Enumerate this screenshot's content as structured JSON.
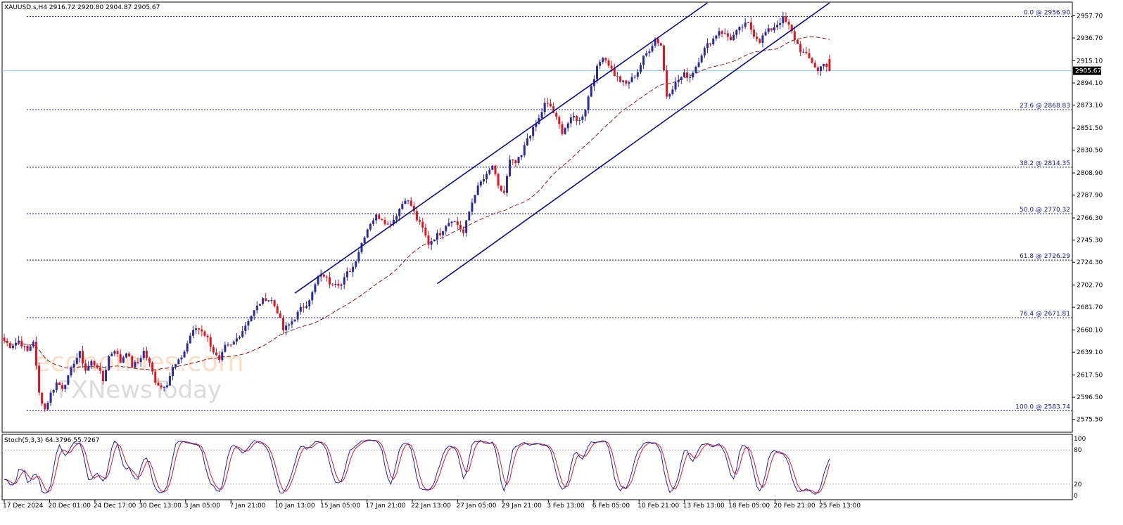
{
  "header": {
    "symbol_info": "XAUUSD.s,H4  2916.72 2920.80 2904.87 2905.67"
  },
  "current_price": {
    "value": 2905.67,
    "label": "2905.67"
  },
  "watermark": {
    "line1": "economies.com",
    "line2": "FXNewsToday"
  },
  "colors": {
    "bull": "#2a2a9a",
    "bear": "#e0141e",
    "channel": "#0a0a8c",
    "fib": "#1a1a8c",
    "ma": "#8b1a1a",
    "stoch_main": "#1f1fb0",
    "stoch_signal": "#e0141e",
    "current_line": "#87cefa"
  },
  "chart_data": [
    {
      "type": "candlestick",
      "title": "XAUUSD.s,H4",
      "symbol": "XAUUSD.s",
      "timeframe": "H4",
      "last_bar": {
        "open": 2916.72,
        "high": 2920.8,
        "low": 2904.87,
        "close": 2905.67
      },
      "ylim": [
        2564,
        2970
      ],
      "y_ticks": [
        "2957.70",
        "2936.70",
        "2915.10",
        "2894.10",
        "2873.10",
        "2851.50",
        "2830.50",
        "2808.90",
        "2787.90",
        "2766.30",
        "2745.30",
        "2724.30",
        "2702.70",
        "2681.70",
        "2660.10",
        "2639.10",
        "2617.50",
        "2596.50",
        "2575.50"
      ],
      "x_ticks": [
        "17 Dec 2024",
        "20 Dec 01:00",
        "24 Dec 17:00",
        "30 Dec 13:00",
        "3 Jan 05:00",
        "7 Jan 21:00",
        "10 Jan 13:00",
        "15 Jan 05:00",
        "17 Jan 21:00",
        "22 Jan 13:00",
        "27 Jan 05:00",
        "29 Jan 21:00",
        "3 Feb 13:00",
        "6 Feb 05:00",
        "10 Feb 21:00",
        "13 Feb 13:00",
        "18 Feb 05:00",
        "20 Feb 21:00",
        "25 Feb 13:00"
      ],
      "fibonacci_levels": [
        {
          "label": "0.0 @ 2956.90",
          "price": 2956.9
        },
        {
          "label": "23.6 @ 2868.83",
          "price": 2868.83
        },
        {
          "label": "38.2 @ 2814.35",
          "price": 2814.35
        },
        {
          "label": "50.0 @ 2770.32",
          "price": 2770.32
        },
        {
          "label": "61.8 @ 2726.29",
          "price": 2726.29
        },
        {
          "label": "76.4 @ 2671.81",
          "price": 2671.81
        },
        {
          "label": "100.0 @ 2583.74",
          "price": 2583.74
        }
      ],
      "price_path": [
        [
          0,
          2650
        ],
        [
          2,
          2645
        ],
        [
          5,
          2650
        ],
        [
          8,
          2640
        ],
        [
          10,
          2650
        ],
        [
          12,
          2600
        ],
        [
          14,
          2585
        ],
        [
          16,
          2600
        ],
        [
          18,
          2610
        ],
        [
          20,
          2606
        ],
        [
          22,
          2615
        ],
        [
          24,
          2630
        ],
        [
          26,
          2638
        ],
        [
          28,
          2622
        ],
        [
          30,
          2630
        ],
        [
          32,
          2626
        ],
        [
          34,
          2612
        ],
        [
          36,
          2635
        ],
        [
          38,
          2642
        ],
        [
          40,
          2630
        ],
        [
          42,
          2640
        ],
        [
          44,
          2626
        ],
        [
          46,
          2630
        ],
        [
          48,
          2640
        ],
        [
          50,
          2628
        ],
        [
          52,
          2612
        ],
        [
          54,
          2606
        ],
        [
          56,
          2610
        ],
        [
          58,
          2624
        ],
        [
          60,
          2630
        ],
        [
          62,
          2640
        ],
        [
          64,
          2655
        ],
        [
          66,
          2662
        ],
        [
          68,
          2660
        ],
        [
          70,
          2652
        ],
        [
          72,
          2640
        ],
        [
          74,
          2630
        ],
        [
          76,
          2644
        ],
        [
          78,
          2645
        ],
        [
          80,
          2652
        ],
        [
          82,
          2660
        ],
        [
          84,
          2670
        ],
        [
          86,
          2678
        ],
        [
          88,
          2686
        ],
        [
          90,
          2690
        ],
        [
          92,
          2688
        ],
        [
          94,
          2678
        ],
        [
          96,
          2660
        ],
        [
          98,
          2665
        ],
        [
          100,
          2672
        ],
        [
          102,
          2680
        ],
        [
          104,
          2685
        ],
        [
          106,
          2695
        ],
        [
          108,
          2710
        ],
        [
          110,
          2712
        ],
        [
          112,
          2705
        ],
        [
          114,
          2706
        ],
        [
          116,
          2703
        ],
        [
          118,
          2714
        ],
        [
          120,
          2720
        ],
        [
          122,
          2735
        ],
        [
          124,
          2750
        ],
        [
          126,
          2762
        ],
        [
          128,
          2768
        ],
        [
          130,
          2766
        ],
        [
          132,
          2760
        ],
        [
          134,
          2765
        ],
        [
          136,
          2775
        ],
        [
          138,
          2785
        ],
        [
          140,
          2778
        ],
        [
          142,
          2765
        ],
        [
          144,
          2756
        ],
        [
          146,
          2742
        ],
        [
          148,
          2748
        ],
        [
          150,
          2752
        ],
        [
          152,
          2760
        ],
        [
          154,
          2765
        ],
        [
          156,
          2760
        ],
        [
          158,
          2752
        ],
        [
          160,
          2772
        ],
        [
          162,
          2790
        ],
        [
          164,
          2800
        ],
        [
          166,
          2806
        ],
        [
          168,
          2816
        ],
        [
          170,
          2795
        ],
        [
          172,
          2790
        ],
        [
          174,
          2820
        ],
        [
          176,
          2818
        ],
        [
          178,
          2825
        ],
        [
          180,
          2842
        ],
        [
          182,
          2850
        ],
        [
          184,
          2860
        ],
        [
          186,
          2874
        ],
        [
          188,
          2872
        ],
        [
          190,
          2860
        ],
        [
          192,
          2848
        ],
        [
          194,
          2856
        ],
        [
          196,
          2862
        ],
        [
          198,
          2858
        ],
        [
          200,
          2870
        ],
        [
          202,
          2892
        ],
        [
          204,
          2908
        ],
        [
          206,
          2920
        ],
        [
          208,
          2912
        ],
        [
          210,
          2902
        ],
        [
          212,
          2896
        ],
        [
          214,
          2893
        ],
        [
          216,
          2898
        ],
        [
          218,
          2905
        ],
        [
          220,
          2918
        ],
        [
          222,
          2926
        ],
        [
          224,
          2936
        ],
        [
          226,
          2930
        ],
        [
          228,
          2882
        ],
        [
          230,
          2890
        ],
        [
          232,
          2897
        ],
        [
          234,
          2902
        ],
        [
          236,
          2900
        ],
        [
          238,
          2910
        ],
        [
          240,
          2922
        ],
        [
          242,
          2930
        ],
        [
          244,
          2936
        ],
        [
          246,
          2944
        ],
        [
          248,
          2940
        ],
        [
          250,
          2936
        ],
        [
          252,
          2942
        ],
        [
          254,
          2948
        ],
        [
          256,
          2950
        ],
        [
          258,
          2940
        ],
        [
          260,
          2934
        ],
        [
          262,
          2942
        ],
        [
          264,
          2945
        ],
        [
          266,
          2950
        ],
        [
          268,
          2955
        ],
        [
          270,
          2948
        ],
        [
          272,
          2936
        ],
        [
          274,
          2925
        ],
        [
          276,
          2920
        ],
        [
          278,
          2914
        ],
        [
          280,
          2905
        ],
        [
          282,
          2914
        ],
        [
          284,
          2906
        ]
      ],
      "indicator": {
        "name": "Stoch(5,3,3)",
        "label": "Stoch(5,3,3) 64.3796 55.7267",
        "main": 64.3796,
        "signal": 55.7267,
        "levels": [
          80,
          20
        ],
        "ylim": [
          0,
          100
        ],
        "y_ticks": [
          "100",
          "80",
          "20",
          "0"
        ]
      }
    }
  ]
}
